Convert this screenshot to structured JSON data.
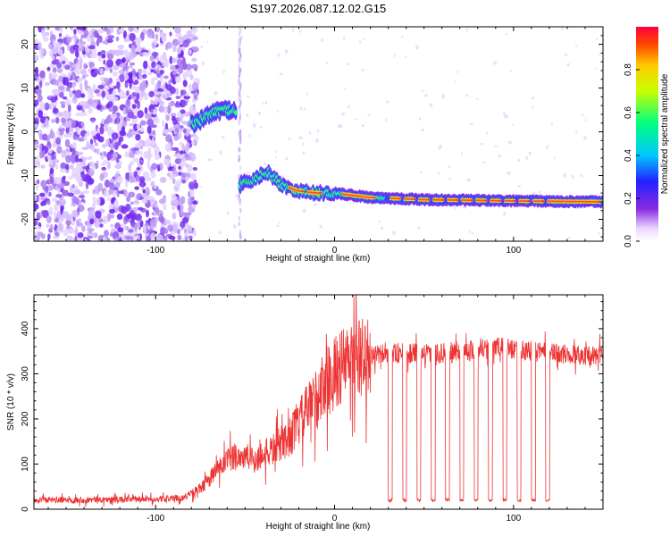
{
  "title": "S197.2026.087.12.02.G15",
  "chart_data": [
    {
      "type": "heatmap",
      "xlabel": "Height of straight line (km)",
      "ylabel": "Frequency (Hz)",
      "xlim": [
        -168,
        150
      ],
      "ylim": [
        -25,
        24
      ],
      "xticks": [
        -100,
        0,
        100
      ],
      "yticks": [
        -20,
        -10,
        0,
        10,
        20
      ],
      "colorbar": {
        "label": "Normalized spectral amplitude",
        "range": [
          0,
          1
        ],
        "ticks": [
          "0.0",
          "0.2",
          "0.4",
          "0.6",
          "0.8"
        ],
        "tick_values": [
          0,
          0.2,
          0.4,
          0.6,
          0.8
        ]
      },
      "ridge": [
        {
          "x": -77,
          "y": 2
        },
        {
          "x": -70,
          "y": 4
        },
        {
          "x": -63,
          "y": 5
        },
        {
          "x": -53,
          "y": -12
        },
        {
          "x": -45,
          "y": -11
        },
        {
          "x": -38,
          "y": -9
        },
        {
          "x": -30,
          "y": -12
        },
        {
          "x": -20,
          "y": -13.5
        },
        {
          "x": -10,
          "y": -14
        },
        {
          "x": 0,
          "y": -14
        },
        {
          "x": 20,
          "y": -15
        },
        {
          "x": 50,
          "y": -15.5
        },
        {
          "x": 100,
          "y": -15.8
        },
        {
          "x": 150,
          "y": -16
        }
      ]
    },
    {
      "type": "line",
      "xlabel": "Height of straight line (km)",
      "ylabel": "SNR (10 * v/v)",
      "xlim": [
        -168,
        150
      ],
      "ylim": [
        0,
        475
      ],
      "xticks": [
        -100,
        0,
        100
      ],
      "yticks": [
        0,
        100,
        200,
        300,
        400
      ],
      "series": [
        {
          "name": "SNR",
          "color": "#ee3333",
          "envelope": [
            {
              "x": -168,
              "y": 20
            },
            {
              "x": -100,
              "y": 22
            },
            {
              "x": -85,
              "y": 25
            },
            {
              "x": -75,
              "y": 45
            },
            {
              "x": -65,
              "y": 90
            },
            {
              "x": -55,
              "y": 120
            },
            {
              "x": -45,
              "y": 110
            },
            {
              "x": -35,
              "y": 130
            },
            {
              "x": -25,
              "y": 160
            },
            {
              "x": -15,
              "y": 220
            },
            {
              "x": -5,
              "y": 280
            },
            {
              "x": 5,
              "y": 320
            },
            {
              "x": 15,
              "y": 335
            },
            {
              "x": 30,
              "y": 345
            },
            {
              "x": 60,
              "y": 345
            },
            {
              "x": 90,
              "y": 360
            },
            {
              "x": 120,
              "y": 345
            },
            {
              "x": 150,
              "y": 340
            }
          ],
          "dropouts": [
            30,
            38,
            46,
            54,
            62,
            70,
            78,
            86,
            94,
            102,
            110,
            118
          ],
          "dropout_level": 20
        }
      ]
    }
  ]
}
